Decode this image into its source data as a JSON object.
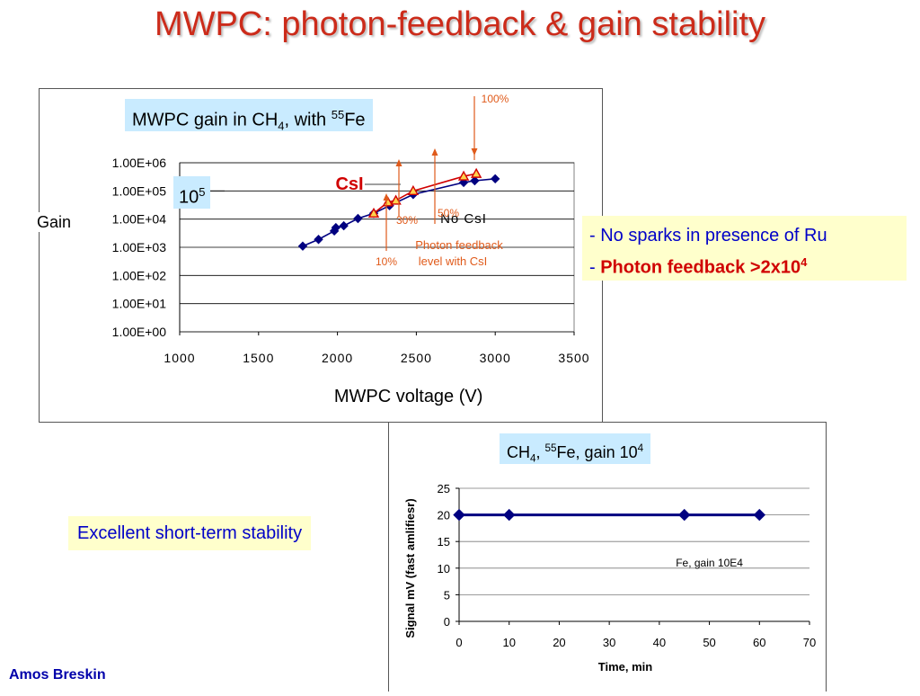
{
  "title": "MWPC: photon-feedback & gain stability",
  "author": "Amos Breskin",
  "notes": {
    "line1": "- No sparks in presence of Ru",
    "line2_prefix": "- ",
    "line2_bold": "Photon feedback >2x10",
    "line2_sup": "4"
  },
  "stability_label": "Excellent short-term stability",
  "chart_data": [
    {
      "type": "line",
      "title": {
        "main": "MWPC gain in CH",
        "sub": "4",
        "mid": ", with ",
        "sup": "55",
        "end": "Fe"
      },
      "xlabel": "MWPC voltage (V)",
      "ylabel": "Gain",
      "xlim": [
        1000,
        3500
      ],
      "ylim": [
        1,
        1000000
      ],
      "yscale": "log",
      "x_ticks": [
        "1000",
        "1500",
        "2000",
        "2500",
        "3000",
        "3500"
      ],
      "y_ticks": [
        "1.00E+00",
        "1.00E+01",
        "1.00E+02",
        "1.00E+03",
        "1.00E+04",
        "1.00E+05",
        "1.00E+06"
      ],
      "grid": true,
      "series": [
        {
          "name": "No CsI",
          "color": "#000080",
          "marker": "diamond",
          "x": [
            1780,
            1880,
            1980,
            1990,
            2040,
            2130,
            2230,
            2330,
            2480,
            2800,
            2870,
            3000
          ],
          "y": [
            1100,
            1900,
            3800,
            5000,
            5800,
            10500,
            16000,
            30000,
            75000,
            200000,
            230000,
            270000
          ]
        },
        {
          "name": "CsI",
          "color": "#d00000",
          "marker": "triangle",
          "x": [
            2230,
            2320,
            2370,
            2480,
            2800,
            2880
          ],
          "y": [
            16000,
            40000,
            46000,
            100000,
            330000,
            410000
          ]
        }
      ],
      "annotations": {
        "label_1e5": {
          "base": "10",
          "sup": "5"
        },
        "csi": "CsI",
        "no_csi": "No CsI",
        "p100": "100%",
        "p50": "50%",
        "p30": "30%",
        "p10": "10%",
        "photon_line1": "Photon feedback",
        "photon_line2": "level with CsI"
      },
      "annotation_color": "#e05a1a"
    },
    {
      "type": "line",
      "title": {
        "main": "CH",
        "sub": "4",
        "mid": ", ",
        "sup": "55",
        "end": "Fe, gain 10",
        "sup2": "4"
      },
      "xlabel": "Time, min",
      "ylabel": "Signal mV (fast amlifiesr)",
      "xlim": [
        0,
        70
      ],
      "ylim": [
        0,
        25
      ],
      "x_ticks": [
        "0",
        "10",
        "20",
        "30",
        "40",
        "50",
        "60",
        "70"
      ],
      "y_ticks": [
        "0",
        "5",
        "10",
        "15",
        "20",
        "25"
      ],
      "grid": true,
      "series": [
        {
          "name": "Fe, gain 10E4",
          "color": "#000080",
          "marker": "diamond",
          "x": [
            0,
            10,
            45,
            60
          ],
          "y": [
            20,
            20,
            20,
            20
          ]
        }
      ]
    }
  ]
}
